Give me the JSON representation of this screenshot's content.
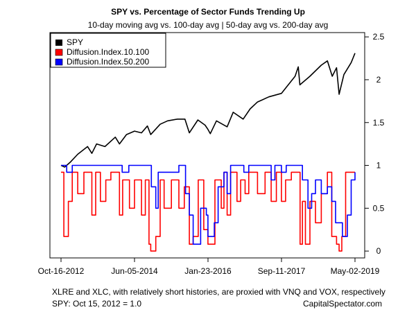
{
  "chart_data": {
    "type": "line",
    "title": "SPY vs. Percentage of Sector Funds Trending Up",
    "subtitle": "10-day moving avg vs. 100-day avg | 50-day avg vs. 200-day avg",
    "x_tick_labels": [
      "Oct-16-2012",
      "Jun-05-2014",
      "Jan-23-2016",
      "Sep-11-2017",
      "May-02-2019"
    ],
    "x_range": [
      "2012-10-16",
      "2019-05-02"
    ],
    "y_ticks": [
      0,
      0.5,
      1,
      1.5,
      2,
      2.5
    ],
    "y_tick_labels": [
      "0",
      "0.5",
      "1",
      "1.5",
      "2",
      "2.5"
    ],
    "ylim": [
      -0.08,
      2.55
    ],
    "y_axis_side": "right",
    "legend_position": "top-left",
    "series": [
      {
        "name": "SPY",
        "color": "#000000",
        "points": [
          [
            "2012-10-16",
            1.0
          ],
          [
            "2012-11-15",
            0.98
          ],
          [
            "2013-01-01",
            1.04
          ],
          [
            "2013-03-01",
            1.13
          ],
          [
            "2013-05-20",
            1.22
          ],
          [
            "2013-06-24",
            1.14
          ],
          [
            "2013-08-01",
            1.25
          ],
          [
            "2013-10-08",
            1.22
          ],
          [
            "2013-12-31",
            1.33
          ],
          [
            "2014-02-03",
            1.25
          ],
          [
            "2014-04-01",
            1.36
          ],
          [
            "2014-06-05",
            1.4
          ],
          [
            "2014-08-01",
            1.38
          ],
          [
            "2014-09-18",
            1.46
          ],
          [
            "2014-10-15",
            1.36
          ],
          [
            "2014-12-31",
            1.48
          ],
          [
            "2015-03-01",
            1.52
          ],
          [
            "2015-05-20",
            1.54
          ],
          [
            "2015-07-20",
            1.54
          ],
          [
            "2015-08-25",
            1.38
          ],
          [
            "2015-11-02",
            1.53
          ],
          [
            "2015-12-31",
            1.47
          ],
          [
            "2016-01-23",
            1.42
          ],
          [
            "2016-02-11",
            1.37
          ],
          [
            "2016-04-01",
            1.52
          ],
          [
            "2016-06-27",
            1.45
          ],
          [
            "2016-08-15",
            1.62
          ],
          [
            "2016-11-04",
            1.54
          ],
          [
            "2016-12-31",
            1.66
          ],
          [
            "2017-03-01",
            1.74
          ],
          [
            "2017-06-01",
            1.8
          ],
          [
            "2017-09-11",
            1.84
          ],
          [
            "2017-12-31",
            2.04
          ],
          [
            "2018-01-26",
            2.15
          ],
          [
            "2018-02-08",
            1.94
          ],
          [
            "2018-05-01",
            2.04
          ],
          [
            "2018-08-01",
            2.17
          ],
          [
            "2018-09-20",
            2.22
          ],
          [
            "2018-10-29",
            2.04
          ],
          [
            "2018-12-03",
            2.14
          ],
          [
            "2018-12-24",
            1.83
          ],
          [
            "2019-02-01",
            2.06
          ],
          [
            "2019-04-01",
            2.2
          ],
          [
            "2019-05-02",
            2.31
          ]
        ]
      },
      {
        "name": "Diffusion.Index.10.100",
        "color": "#ff0000",
        "points": [
          [
            "2012-10-16",
            0.92
          ],
          [
            "2012-11-08",
            0.17
          ],
          [
            "2012-12-15",
            0.58
          ],
          [
            "2013-01-15",
            0.92
          ],
          [
            "2013-03-01",
            0.67
          ],
          [
            "2013-04-20",
            0.92
          ],
          [
            "2013-06-24",
            0.42
          ],
          [
            "2013-07-25",
            0.92
          ],
          [
            "2013-09-01",
            0.58
          ],
          [
            "2013-10-15",
            0.83
          ],
          [
            "2013-11-25",
            0.92
          ],
          [
            "2014-02-03",
            0.42
          ],
          [
            "2014-03-01",
            0.83
          ],
          [
            "2014-04-25",
            0.5
          ],
          [
            "2014-06-05",
            0.83
          ],
          [
            "2014-08-01",
            0.42
          ],
          [
            "2014-09-01",
            0.83
          ],
          [
            "2014-10-01",
            0.08
          ],
          [
            "2014-10-15",
            0.0
          ],
          [
            "2014-11-25",
            0.17
          ],
          [
            "2014-12-31",
            0.83
          ],
          [
            "2015-02-01",
            0.5
          ],
          [
            "2015-04-01",
            0.83
          ],
          [
            "2015-06-01",
            0.5
          ],
          [
            "2015-07-15",
            0.75
          ],
          [
            "2015-08-25",
            0.08
          ],
          [
            "2015-09-25",
            0.17
          ],
          [
            "2015-11-05",
            0.83
          ],
          [
            "2015-12-20",
            0.25
          ],
          [
            "2016-01-23",
            0.08
          ],
          [
            "2016-02-20",
            0.08
          ],
          [
            "2016-03-20",
            0.83
          ],
          [
            "2016-05-10",
            0.5
          ],
          [
            "2016-06-01",
            0.92
          ],
          [
            "2016-06-27",
            0.42
          ],
          [
            "2016-07-25",
            0.92
          ],
          [
            "2016-09-15",
            0.58
          ],
          [
            "2016-10-15",
            0.83
          ],
          [
            "2016-11-20",
            0.67
          ],
          [
            "2016-12-20",
            0.92
          ],
          [
            "2017-03-01",
            0.67
          ],
          [
            "2017-05-01",
            0.92
          ],
          [
            "2017-06-20",
            0.58
          ],
          [
            "2017-08-01",
            0.92
          ],
          [
            "2017-09-11",
            0.58
          ],
          [
            "2017-10-15",
            0.83
          ],
          [
            "2017-12-01",
            0.92
          ],
          [
            "2018-01-26",
            0.92
          ],
          [
            "2018-02-10",
            0.08
          ],
          [
            "2018-03-01",
            0.58
          ],
          [
            "2018-03-25",
            0.08
          ],
          [
            "2018-05-01",
            0.58
          ],
          [
            "2018-06-15",
            0.33
          ],
          [
            "2018-08-01",
            0.67
          ],
          [
            "2018-09-20",
            0.92
          ],
          [
            "2018-10-25",
            0.17
          ],
          [
            "2018-12-03",
            0.08
          ],
          [
            "2018-12-24",
            0.0
          ],
          [
            "2019-01-15",
            0.17
          ],
          [
            "2019-02-15",
            0.92
          ],
          [
            "2019-05-02",
            0.92
          ]
        ]
      },
      {
        "name": "Diffusion.Index.50.200",
        "color": "#0000ff",
        "points": [
          [
            "2012-10-16",
            1.0
          ],
          [
            "2012-12-01",
            0.92
          ],
          [
            "2013-01-15",
            1.0
          ],
          [
            "2014-02-01",
            1.0
          ],
          [
            "2014-02-25",
            0.92
          ],
          [
            "2014-04-20",
            1.0
          ],
          [
            "2014-09-15",
            1.0
          ],
          [
            "2014-10-20",
            0.75
          ],
          [
            "2014-11-25",
            0.5
          ],
          [
            "2014-12-15",
            0.92
          ],
          [
            "2015-06-01",
            1.0
          ],
          [
            "2015-07-25",
            0.67
          ],
          [
            "2015-08-25",
            0.42
          ],
          [
            "2015-09-25",
            0.08
          ],
          [
            "2015-10-25",
            0.08
          ],
          [
            "2015-11-25",
            0.5
          ],
          [
            "2016-01-10",
            0.42
          ],
          [
            "2016-01-23",
            0.17
          ],
          [
            "2016-03-15",
            0.33
          ],
          [
            "2016-04-15",
            0.75
          ],
          [
            "2016-06-01",
            0.92
          ],
          [
            "2016-06-27",
            0.67
          ],
          [
            "2016-07-25",
            1.0
          ],
          [
            "2016-10-01",
            1.0
          ],
          [
            "2016-11-10",
            0.92
          ],
          [
            "2016-12-20",
            1.0
          ],
          [
            "2017-06-20",
            0.83
          ],
          [
            "2017-07-20",
            1.0
          ],
          [
            "2017-09-11",
            0.92
          ],
          [
            "2017-10-20",
            1.0
          ],
          [
            "2018-01-26",
            1.0
          ],
          [
            "2018-03-01",
            0.83
          ],
          [
            "2018-04-15",
            0.5
          ],
          [
            "2018-05-15",
            0.67
          ],
          [
            "2018-06-15",
            0.83
          ],
          [
            "2018-08-01",
            0.67
          ],
          [
            "2018-09-20",
            0.75
          ],
          [
            "2018-10-25",
            0.58
          ],
          [
            "2018-11-25",
            0.33
          ],
          [
            "2018-12-24",
            0.33
          ],
          [
            "2019-01-20",
            0.17
          ],
          [
            "2019-03-01",
            0.42
          ],
          [
            "2019-04-01",
            0.83
          ],
          [
            "2019-05-02",
            0.92
          ]
        ]
      }
    ],
    "footer_line1": "XLRE and XLC, with relatively short histories, are proxied with VNQ and VOX, respectively",
    "footer_line2_left": "SPY: Oct 15, 2012 = 1.0",
    "footer_line2_right": "CapitalSpectator.com"
  }
}
